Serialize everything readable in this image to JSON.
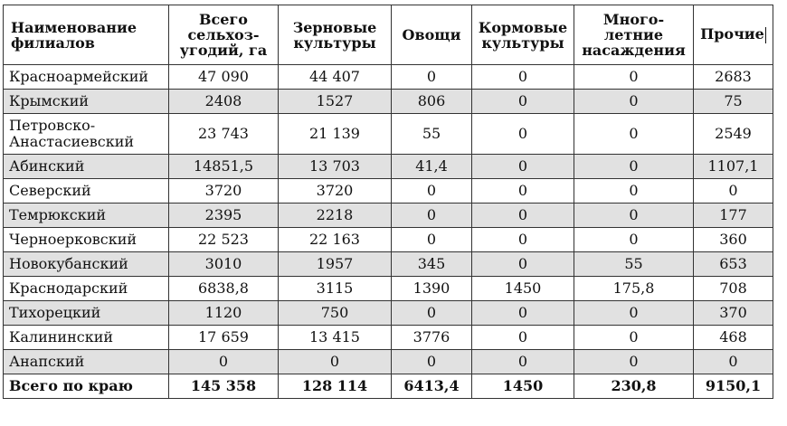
{
  "table": {
    "headers": [
      "Наименование филиалов",
      "Всего сельхоз-угодий, га",
      "Зерновые культуры",
      "Овощи",
      "Кормовые культуры",
      "Много-летние насаждения",
      "Прочие"
    ],
    "rows": [
      [
        "Красноармейский",
        "47 090",
        "44 407",
        "0",
        "0",
        "0",
        "2683"
      ],
      [
        "Крымский",
        "2408",
        "1527",
        "806",
        "0",
        "0",
        "75"
      ],
      [
        "Петровско-Анастасиевский",
        "23 743",
        "21 139",
        "55",
        "0",
        "0",
        "2549"
      ],
      [
        "Абинский",
        "14851,5",
        "13 703",
        "41,4",
        "0",
        "0",
        "1107,1"
      ],
      [
        "Северский",
        "3720",
        "3720",
        "0",
        "0",
        "0",
        "0"
      ],
      [
        "Темрюкский",
        "2395",
        "2218",
        "0",
        "0",
        "0",
        "177"
      ],
      [
        "Черноерковский",
        "22 523",
        "22 163",
        "0",
        "0",
        "0",
        "360"
      ],
      [
        "Новокубанский",
        "3010",
        "1957",
        "345",
        "0",
        "55",
        "653"
      ],
      [
        "Краснодарский",
        "6838,8",
        "3115",
        "1390",
        "1450",
        "175,8",
        "708"
      ],
      [
        "Тихорецкий",
        "1120",
        "750",
        "0",
        "0",
        "0",
        "370"
      ],
      [
        "Калининский",
        "17 659",
        "13 415",
        "3776",
        "0",
        "0",
        "468"
      ],
      [
        "Анапский",
        "0",
        "0",
        "0",
        "0",
        "0",
        "0"
      ]
    ],
    "total": [
      "Всего по краю",
      "145 358",
      "128 114",
      "6413,4",
      "1450",
      "230,8",
      "9150,1"
    ]
  }
}
